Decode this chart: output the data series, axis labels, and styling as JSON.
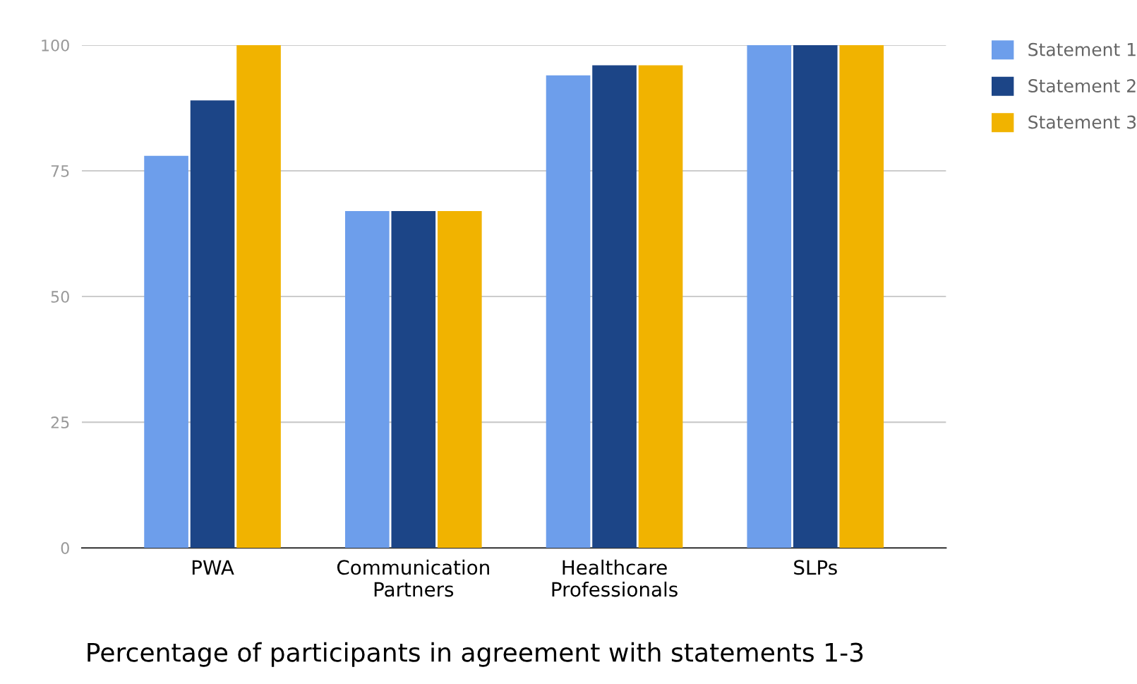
{
  "chart_data": {
    "type": "bar",
    "categories": [
      "PWA",
      "Communication\nPartners",
      "Healthcare\nProfessionals",
      "SLPs"
    ],
    "series": [
      {
        "name": "Statement 1",
        "color": "#6d9eeb",
        "values": [
          78,
          67,
          94,
          100
        ]
      },
      {
        "name": "Statement 2",
        "color": "#1c4587",
        "values": [
          89,
          67,
          96,
          100
        ]
      },
      {
        "name": "Statement 3",
        "color": "#f1b300",
        "values": [
          100,
          67,
          96,
          100
        ]
      }
    ],
    "ylim": [
      0,
      100
    ],
    "yticks": [
      0,
      25,
      50,
      75,
      100
    ],
    "grid": "y",
    "legend": "top right",
    "annotations": [
      "Percentage of participants in agreement with statements 1-3"
    ]
  }
}
